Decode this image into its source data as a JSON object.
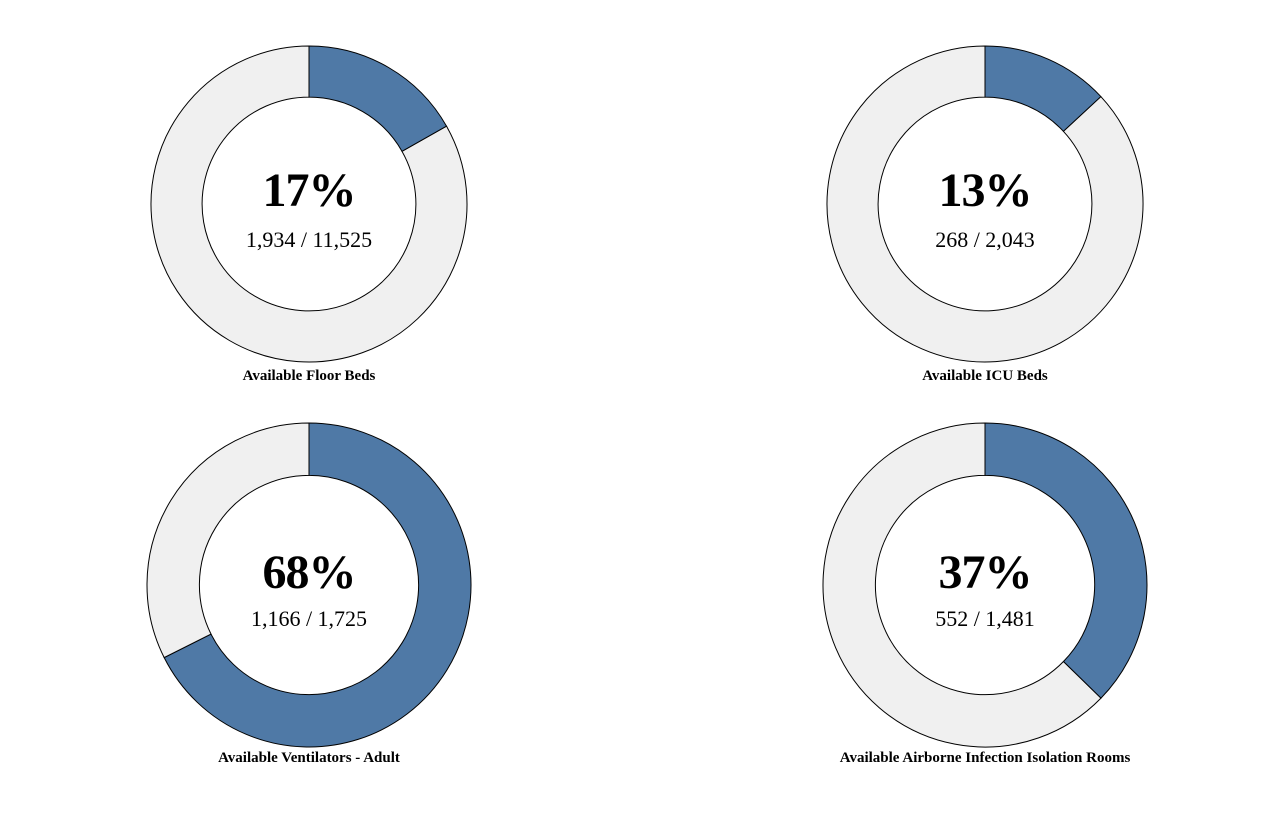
{
  "colors": {
    "filled": "#4f79a6",
    "remaining": "#f0f0f0",
    "stroke": "#000000"
  },
  "chart_data": [
    {
      "type": "pie",
      "title": "Available Floor Beds",
      "percent_label": "17%",
      "count_label": "1,934 / 11,525",
      "value": 1934,
      "total": 11525,
      "fraction": 0.168
    },
    {
      "type": "pie",
      "title": "Available ICU Beds",
      "percent_label": "13%",
      "count_label": "268 / 2,043",
      "value": 268,
      "total": 2043,
      "fraction": 0.131
    },
    {
      "type": "pie",
      "title": "Available Ventilators - Adult",
      "percent_label": "68%",
      "count_label": "1,166 / 1,725",
      "value": 1166,
      "total": 1725,
      "fraction": 0.676
    },
    {
      "type": "pie",
      "title": "Available Airborne Infection Isolation Rooms",
      "percent_label": "37%",
      "count_label": "552 / 1,481",
      "value": 552,
      "total": 1481,
      "fraction": 0.373
    }
  ]
}
